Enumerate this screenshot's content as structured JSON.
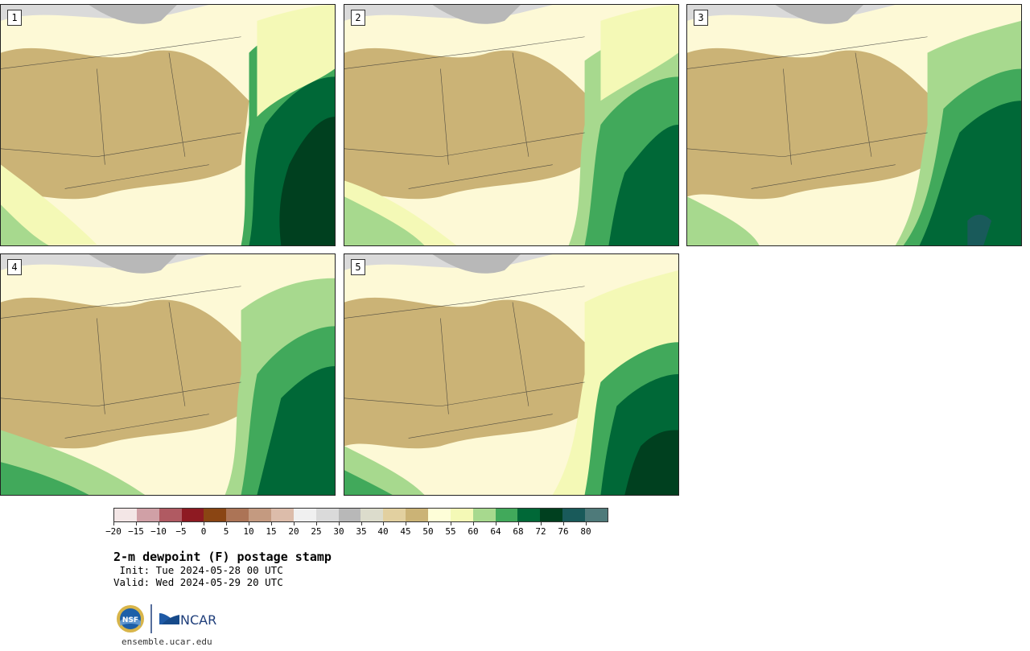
{
  "product": {
    "title": "2-m dewpoint (F) postage stamp",
    "init": " Init: Tue 2024-05-28 00 UTC",
    "valid": "Valid: Wed 2024-05-29 20 UTC",
    "footer_url": "ensemble.ucar.edu"
  },
  "panels": [
    {
      "label": "1",
      "member": 1
    },
    {
      "label": "2",
      "member": 2
    },
    {
      "label": "3",
      "member": 3
    },
    {
      "label": "4",
      "member": 4
    },
    {
      "label": "5",
      "member": 5
    }
  ],
  "colorbar": {
    "colors": [
      "#f3e6e6",
      "#d0a0a6",
      "#b05a62",
      "#8e1a22",
      "#8a4513",
      "#ac7456",
      "#c49a80",
      "#dcbcaa",
      "#f0f0f0",
      "#dadada",
      "#b8b8b8",
      "#dcdccc",
      "#e2d0a0",
      "#cbb376",
      "#fefed8",
      "#f4f9b6",
      "#a7d98e",
      "#41a95b",
      "#006837",
      "#00401f",
      "#195a5a",
      "#4e7a7a"
    ],
    "tick_labels": [
      "−20",
      "−15",
      "−10",
      "−5",
      "0",
      "5",
      "10",
      "15",
      "20",
      "25",
      "30",
      "35",
      "40",
      "45",
      "50",
      "55",
      "60",
      "64",
      "68",
      "72",
      "76",
      "80"
    ]
  },
  "logos": {
    "nsf_text": "NSF",
    "ncar_text": "NCAR"
  }
}
